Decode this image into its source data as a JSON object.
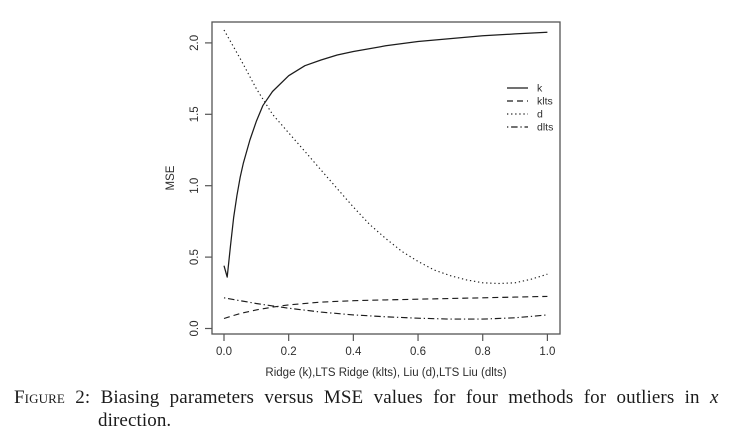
{
  "caption": {
    "label": "Figure 2:",
    "line1": "Biasing parameters versus MSE values for four methods for outliers in",
    "math_var": "x",
    "line2": "direction."
  },
  "chart_data": {
    "type": "line",
    "title": "",
    "xlabel": "Ridge (k),LTS Ridge (klts), Liu (d),LTS Liu (dlts)",
    "ylabel": "MSE",
    "xlim": [
      0.0,
      1.0
    ],
    "ylim": [
      0.0,
      2.15
    ],
    "xticks": [
      "0.0",
      "0.2",
      "0.4",
      "0.6",
      "0.8",
      "1.0"
    ],
    "yticks": [
      "0.0",
      "0.5",
      "1.0",
      "1.5",
      "2.0"
    ],
    "grid": false,
    "legend": {
      "position": "inside-upper-right",
      "entries": [
        "k",
        "klts",
        "d",
        "dlts"
      ]
    },
    "line_color": "#1c1c1c",
    "axis_color": "#555555",
    "text_color": "#2e2e2e",
    "series": [
      {
        "name": "k",
        "style": "solid",
        "x": [
          0,
          0.01,
          0.02,
          0.03,
          0.04,
          0.05,
          0.06,
          0.08,
          0.1,
          0.12,
          0.15,
          0.2,
          0.25,
          0.3,
          0.35,
          0.4,
          0.5,
          0.6,
          0.7,
          0.8,
          0.9,
          1.0
        ],
        "y": [
          0.44,
          0.36,
          0.58,
          0.78,
          0.93,
          1.06,
          1.16,
          1.32,
          1.45,
          1.56,
          1.66,
          1.77,
          1.84,
          1.88,
          1.915,
          1.94,
          1.98,
          2.01,
          2.03,
          2.05,
          2.063,
          2.075
        ]
      },
      {
        "name": "klts",
        "style": "dashed",
        "x": [
          0,
          0.02,
          0.05,
          0.1,
          0.15,
          0.2,
          0.3,
          0.4,
          0.5,
          0.6,
          0.7,
          0.8,
          0.9,
          1.0
        ],
        "y": [
          0.07,
          0.085,
          0.105,
          0.13,
          0.15,
          0.165,
          0.185,
          0.195,
          0.2,
          0.205,
          0.21,
          0.215,
          0.22,
          0.225
        ]
      },
      {
        "name": "d",
        "style": "dotted",
        "x": [
          0,
          0.05,
          0.1,
          0.15,
          0.2,
          0.25,
          0.3,
          0.35,
          0.4,
          0.45,
          0.5,
          0.55,
          0.6,
          0.65,
          0.7,
          0.75,
          0.8,
          0.85,
          0.9,
          0.95,
          1.0
        ],
        "y": [
          2.09,
          1.89,
          1.68,
          1.5,
          1.37,
          1.24,
          1.11,
          0.98,
          0.85,
          0.73,
          0.63,
          0.54,
          0.47,
          0.41,
          0.37,
          0.34,
          0.32,
          0.315,
          0.32,
          0.345,
          0.38
        ]
      },
      {
        "name": "dlts",
        "style": "dashdot",
        "x": [
          0,
          0.05,
          0.1,
          0.15,
          0.2,
          0.3,
          0.4,
          0.5,
          0.6,
          0.7,
          0.8,
          0.9,
          1.0
        ],
        "y": [
          0.215,
          0.195,
          0.175,
          0.158,
          0.142,
          0.115,
          0.095,
          0.082,
          0.072,
          0.066,
          0.066,
          0.075,
          0.095
        ]
      }
    ]
  }
}
